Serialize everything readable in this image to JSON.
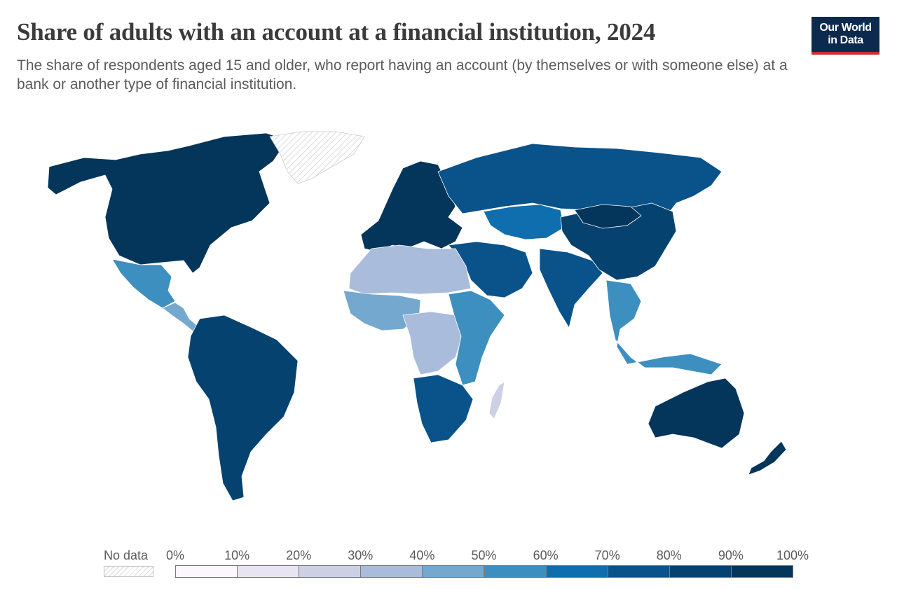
{
  "header": {
    "title": "Share of adults with an account at a financial institution, 2024",
    "subtitle": "The share of respondents aged 15 and older, who report having an account (by themselves or with someone else) at a bank or another type of financial institution."
  },
  "logo": {
    "line1": "Our World",
    "line2": "in Data"
  },
  "legend": {
    "no_data_label": "No data",
    "bins": [
      {
        "from": 0,
        "to": 10,
        "color": "#fcf7fc"
      },
      {
        "from": 10,
        "to": 20,
        "color": "#e9e4f1"
      },
      {
        "from": 20,
        "to": 30,
        "color": "#cdd0e4"
      },
      {
        "from": 30,
        "to": 40,
        "color": "#a9bcdb"
      },
      {
        "from": 40,
        "to": 50,
        "color": "#74a8cf"
      },
      {
        "from": 50,
        "to": 60,
        "color": "#3d8fc0"
      },
      {
        "from": 60,
        "to": 70,
        "color": "#0f6fae"
      },
      {
        "from": 70,
        "to": 80,
        "color": "#09528a"
      },
      {
        "from": 80,
        "to": 90,
        "color": "#06426f"
      },
      {
        "from": 90,
        "to": 100,
        "color": "#04355a"
      }
    ],
    "tick_labels": [
      "0%",
      "10%",
      "20%",
      "30%",
      "40%",
      "50%",
      "60%",
      "70%",
      "80%",
      "90%",
      "100%"
    ]
  },
  "colors": {
    "no_data_fill": "#f2f2f2",
    "no_data_hatch": "#d0d0d0",
    "border": "#ffffff"
  },
  "map_regions": [
    {
      "region": "north-america",
      "bin": 9
    },
    {
      "region": "greenland",
      "bin": -1
    },
    {
      "region": "mexico",
      "bin": 5
    },
    {
      "region": "central-america",
      "bin": 4
    },
    {
      "region": "south-america",
      "bin": 8
    },
    {
      "region": "western-europe",
      "bin": 9
    },
    {
      "region": "russia",
      "bin": 7
    },
    {
      "region": "central-asia",
      "bin": 6
    },
    {
      "region": "middle-east",
      "bin": 7
    },
    {
      "region": "south-asia",
      "bin": 7
    },
    {
      "region": "china",
      "bin": 8
    },
    {
      "region": "mongolia",
      "bin": 9
    },
    {
      "region": "southeast-asia",
      "bin": 5
    },
    {
      "region": "north-africa",
      "bin": 3
    },
    {
      "region": "west-africa",
      "bin": 4
    },
    {
      "region": "central-africa",
      "bin": 3
    },
    {
      "region": "east-africa",
      "bin": 5
    },
    {
      "region": "southern-africa",
      "bin": 7
    },
    {
      "region": "madagascar",
      "bin": 2
    },
    {
      "region": "australia",
      "bin": 9
    },
    {
      "region": "new-zealand",
      "bin": 9
    }
  ]
}
